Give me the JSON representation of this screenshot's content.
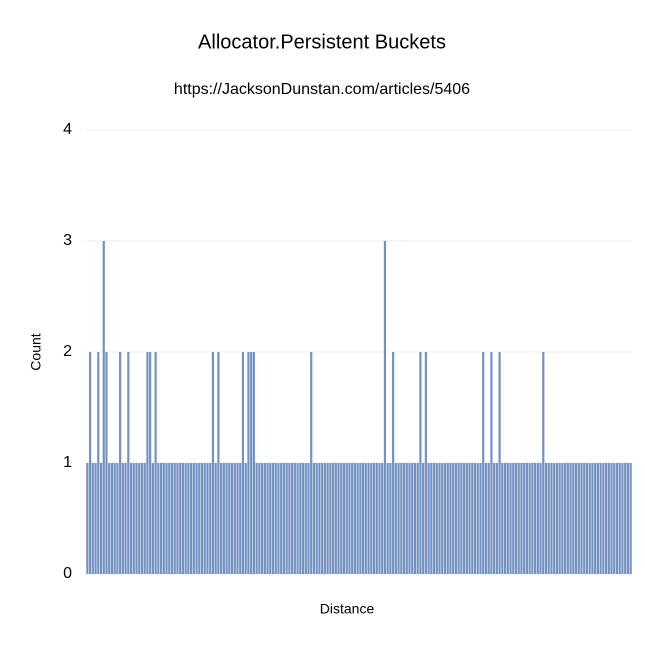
{
  "chart_data": {
    "type": "bar",
    "title": "Allocator.Persistent Buckets",
    "subtitle": "https://JacksonDunstan.com/articles/5406",
    "x_label": "Distance",
    "y_label": "Count",
    "color": "#7391c0",
    "grid": true,
    "ylim": [
      0,
      4
    ],
    "yticks": [
      0,
      1,
      2,
      3,
      4
    ],
    "categories": [
      null,
      null,
      null,
      null,
      null,
      null,
      null,
      null,
      null,
      null,
      null,
      null,
      null,
      null,
      null,
      null,
      null,
      null,
      null,
      null,
      null,
      null,
      null,
      null,
      null,
      null,
      null,
      null,
      null,
      null,
      null,
      null,
      null,
      null,
      null,
      null,
      null,
      null,
      null,
      null,
      null,
      null,
      null,
      null,
      null,
      null,
      null,
      null,
      null,
      null,
      null,
      null,
      null,
      null,
      null,
      null,
      null,
      null,
      null,
      null,
      null,
      null,
      null,
      null,
      null,
      null,
      null,
      null,
      null,
      null,
      null,
      null,
      null,
      null,
      null,
      null,
      null,
      null,
      null,
      null,
      null,
      null,
      null,
      null,
      null,
      null,
      null,
      null,
      null,
      null,
      null,
      null,
      null,
      null,
      null,
      null,
      null,
      null,
      null,
      null,
      null,
      null,
      null,
      null,
      null,
      null,
      null,
      null,
      null,
      null,
      null,
      null,
      null,
      null,
      null,
      null,
      null,
      null,
      null,
      null,
      null,
      null,
      null,
      null,
      null,
      null,
      null,
      null,
      null,
      null,
      null,
      null,
      null,
      null,
      null,
      null,
      null,
      null,
      null,
      null,
      null,
      null,
      null,
      null,
      null,
      null,
      null,
      null,
      null,
      null,
      null,
      null,
      null,
      null,
      null,
      null,
      null,
      null,
      null,
      null,
      null,
      null,
      null,
      null,
      null,
      null,
      null,
      null,
      null,
      null,
      null,
      null,
      null,
      null,
      null,
      null,
      null,
      null,
      null,
      null,
      null,
      null,
      null,
      null,
      null,
      null,
      null,
      null,
      null,
      null,
      null,
      null,
      null,
      null,
      null,
      null,
      null,
      null,
      null,
      null
    ],
    "values": [
      1,
      2,
      1,
      1,
      2,
      1,
      3,
      2,
      1,
      1,
      1,
      1,
      2,
      1,
      1,
      2,
      1,
      1,
      1,
      1,
      1,
      1,
      2,
      2,
      1,
      2,
      1,
      1,
      1,
      1,
      1,
      1,
      1,
      1,
      1,
      1,
      1,
      1,
      1,
      1,
      1,
      1,
      1,
      1,
      1,
      1,
      2,
      1,
      2,
      1,
      1,
      1,
      1,
      1,
      1,
      1,
      1,
      2,
      1,
      2,
      2,
      2,
      1,
      1,
      1,
      1,
      1,
      1,
      1,
      1,
      1,
      1,
      1,
      1,
      1,
      1,
      1,
      1,
      1,
      1,
      1,
      1,
      2,
      1,
      1,
      1,
      1,
      1,
      1,
      1,
      1,
      1,
      1,
      1,
      1,
      1,
      1,
      1,
      1,
      1,
      1,
      1,
      1,
      1,
      1,
      1,
      1,
      1,
      1,
      3,
      1,
      1,
      2,
      1,
      1,
      1,
      1,
      1,
      1,
      1,
      1,
      1,
      2,
      1,
      2,
      1,
      1,
      1,
      1,
      1,
      1,
      1,
      1,
      1,
      1,
      1,
      1,
      1,
      1,
      1,
      1,
      1,
      1,
      1,
      1,
      2,
      1,
      1,
      2,
      1,
      1,
      2,
      1,
      1,
      1,
      1,
      1,
      1,
      1,
      1,
      1,
      1,
      1,
      1,
      1,
      1,
      1,
      2,
      1,
      1,
      1,
      1,
      1,
      1,
      1,
      1,
      1,
      1,
      1,
      1,
      1,
      1,
      1,
      1,
      1,
      1,
      1,
      1,
      1,
      1,
      1,
      1,
      1,
      1,
      1,
      1,
      1,
      1,
      1,
      1
    ]
  }
}
